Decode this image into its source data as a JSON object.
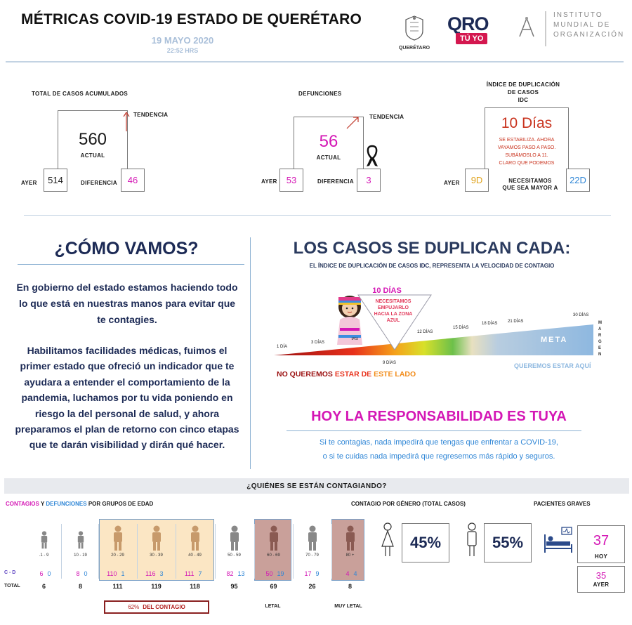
{
  "header": {
    "title": "MÉTRICAS COVID-19 ESTADO DE QUERÉTARO",
    "date": "19 MAYO 2020",
    "time": "22:52 HRS",
    "logo_queretaro_text": "QUERÉTARO",
    "logo_oro_text": "QRO",
    "logo_tuyo_text": "TÚ YO",
    "logo_imo_line1": "INSTITUTO",
    "logo_imo_line2": "MUNDIAL DE",
    "logo_imo_line3": "ORGANIZACIÓN"
  },
  "metrics": {
    "total": {
      "title": "TOTAL DE CASOS ACUMULADOS",
      "trend_label": "TENDENCIA",
      "actual_value": "560",
      "actual_label": "ACTUAL",
      "yesterday_label": "AYER",
      "yesterday_value": "514",
      "diff_label": "DIFERENCIA",
      "diff_value": "46"
    },
    "deaths": {
      "title": "DEFUNCIONES",
      "trend_label": "TENDENCIA",
      "actual_value": "56",
      "actual_label": "ACTUAL",
      "yesterday_label": "AYER",
      "yesterday_value": "53",
      "diff_label": "DIFERENCIA",
      "diff_value": "3"
    },
    "idc": {
      "title_line1": "ÍNDICE DE DUPLICACIÓN",
      "title_line2": "DE CASOS",
      "title_line3": "IDC",
      "value": "10 Días",
      "message_line1": "SE ESTABILIZA. AHORA",
      "message_line2": "VAYAMOS PASO A PASO.",
      "message_line3": "SUBÁMOSLO A  11.",
      "message_line4": "CLARO QUE PODEMOS",
      "yesterday_label": "AYER",
      "yesterday_value": "9D",
      "need_label_line1": "NECESITAMOS",
      "need_label_line2": "QUE SEA MAYOR A",
      "need_value": "22D"
    }
  },
  "como_vamos": {
    "title": "¿CÓMO VAMOS?",
    "para1": "En gobierno del estado estamos haciendo todo lo que está en nuestras manos para evitar que te contagies.",
    "para2": "Habilitamos facilidades médicas, fuimos el primer estado que ofreció un indicador que te ayudara a entender el comportamiento de la pandemia, luchamos por tu vida poniendo en riesgo la del personal de salud, y ahora preparamos el plan de retorno con cinco etapas que te darán visibilidad y dirán qué hacer."
  },
  "duplication": {
    "title": "LOS CASOS SE DUPLICAN CADA:",
    "subtitle_pre": "EL ÍNDICE DE DUPLICACIÓN DE CASOS ",
    "subtitle_idc": "IDC",
    "subtitle_post": ", REPRESENTA LA VELOCIDAD DE CONTAGIO",
    "current_label": "10 DÍAS",
    "callout_line1": "NECESITAMOS",
    "callout_line2": "EMPUJARLO",
    "callout_line3": "HACIA LA ZONA",
    "callout_line4": "AZUL",
    "scale": {
      "d1": "1 DÍA",
      "d3": "3 DÍAS",
      "d5": "5 DÍAS",
      "d9": "9 DÍAS",
      "d12": "12 DÍAS",
      "d15": "15 DÍAS",
      "d18": "18 DÍAS",
      "d21": "21 DÍAS",
      "d30": "30 DÍAS"
    },
    "meta_label": "META",
    "margen_label": "MARGEN",
    "bad_side_1": "NO QUEREMOS",
    "bad_side_2": "ESTAR DE",
    "bad_side_3": "ESTE LADO",
    "good_side": "QUEREMOS ESTAR AQUÍ"
  },
  "responsibility": {
    "title": "HOY LA RESPONSABILIDAD ES TUYA",
    "line1": "Si te contagias, nada impedirá que tengas que enfrentar a COVID-19,",
    "line2": "o si te cuidas nada impedirá que regresemos más rápido y seguros."
  },
  "who": {
    "banner": "¿QUIÉNES SE ESTÁN CONTAGIANDO?",
    "age_title_contagios": "CONTAGIOS",
    "age_title_y": " Y ",
    "age_title_defunciones": "DEFUNCIONES",
    "age_title_rest": " POR GRUPOS DE EDAD",
    "row_cd_label": "C - D",
    "row_total_label": "TOTAL",
    "groups": [
      {
        "range": ".1 - 9",
        "c": "6",
        "d": "0",
        "total": "6"
      },
      {
        "range": "10 - 19",
        "c": "8",
        "d": "0",
        "total": "8"
      },
      {
        "range": "20 - 29",
        "c": "110",
        "d": "1",
        "total": "111"
      },
      {
        "range": "30 - 39",
        "c": "116",
        "d": "3",
        "total": "119"
      },
      {
        "range": "40 - 49",
        "c": "111",
        "d": "7",
        "total": "118"
      },
      {
        "range": "50 - 59",
        "c": "82",
        "d": "13",
        "total": "95"
      },
      {
        "range": "60 - 69",
        "c": "50",
        "d": "19",
        "total": "69"
      },
      {
        "range": "70 - 79",
        "c": "17",
        "d": "9",
        "total": "26"
      },
      {
        "range": "80 +",
        "c": "4",
        "d": "4",
        "total": "8"
      }
    ],
    "contagio_pct": "62%",
    "contagio_label": "DEL CONTAGIO",
    "letal_label": "LETAL",
    "muy_letal_label": "MUY LETAL",
    "gender_title": "CONTAGIO POR GÉNERO (TOTAL CASOS)",
    "female_pct": "45%",
    "male_pct": "55%",
    "severe_title": "PACIENTES GRAVES",
    "severe_today_value": "37",
    "severe_today_label": "HOY",
    "severe_yesterday_value": "35",
    "severe_yesterday_label": "AYER"
  },
  "colors": {
    "pink": "#d417b5",
    "blue": "#2f86d6",
    "navy": "#1c2a55",
    "dark_red": "#b31f1f",
    "orange": "#f28c1a",
    "peach_highlight": "#fbe6c4",
    "rose_highlight": "#c9a09a",
    "meta_blue": "#8eb8e0"
  }
}
